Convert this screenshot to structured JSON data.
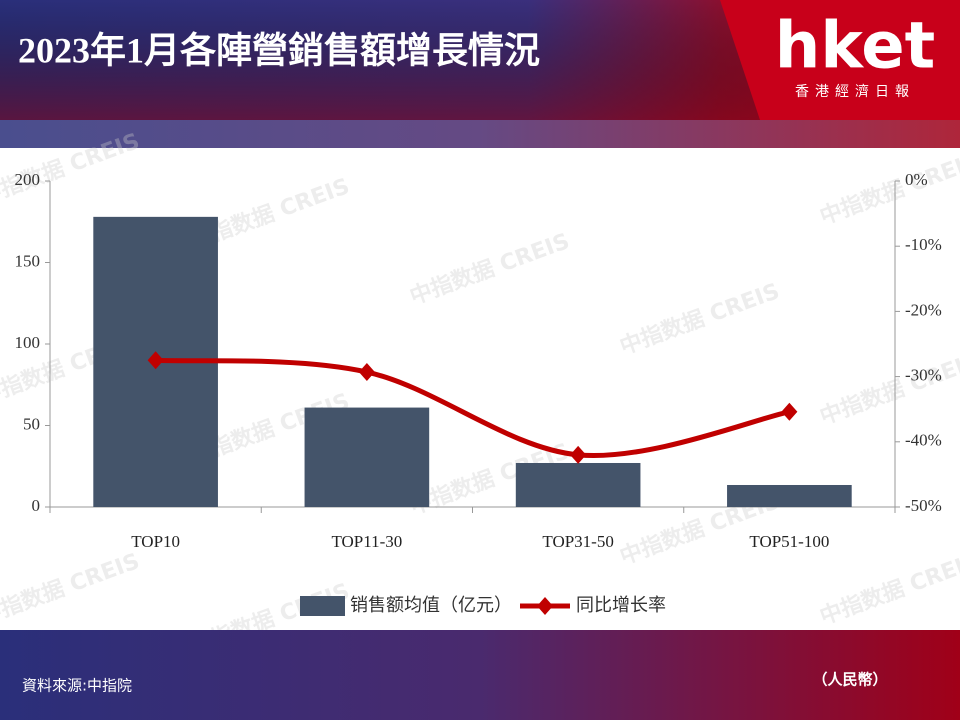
{
  "header": {
    "title": "2023年1月各陣營銷售額增長情況",
    "logo": "hket",
    "logo_subtitle": "香港經濟日報"
  },
  "watermark": "中指数据 CREIS",
  "chart_data": {
    "type": "bar",
    "categories": [
      "TOP10",
      "TOP11-30",
      "TOP31-50",
      "TOP51-100"
    ],
    "series": [
      {
        "name": "销售额均值（亿元）",
        "type": "bar",
        "color": "#44546a",
        "values": [
          178,
          61,
          27,
          13.5
        ]
      },
      {
        "name": "同比增长率",
        "type": "line",
        "axis": "y2",
        "color": "#c00000",
        "values": [
          -27.5,
          -29.3,
          -42,
          -35.4
        ]
      }
    ],
    "ylim": [
      0,
      200
    ],
    "yticks": [
      0,
      50,
      100,
      150,
      200
    ],
    "y2lim": [
      -50,
      0
    ],
    "y2ticks": [
      {
        "value": 0,
        "label": "0%"
      },
      {
        "value": -10,
        "label": "-10%"
      },
      {
        "value": -20,
        "label": "-20%"
      },
      {
        "value": -30,
        "label": "-30%"
      },
      {
        "value": -40,
        "label": "-40%"
      },
      {
        "value": -50,
        "label": "-50%"
      }
    ],
    "legend": "bottom"
  },
  "footer": {
    "source": "資料來源:中指院",
    "unit": "（人民幣）"
  }
}
